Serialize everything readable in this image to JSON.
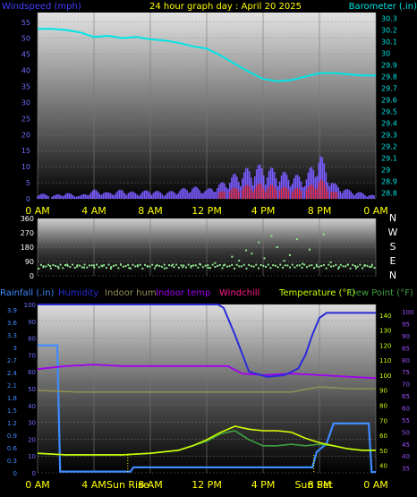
{
  "panel1": {
    "title": "24 hour graph day : April 20 2025",
    "left_label": "Windspeed (mph)",
    "right_label": "Barometer (.in)",
    "x_ticks": [
      "0 AM",
      "4 AM",
      "8 AM",
      "12 PM",
      "4 PM",
      "8 PM",
      "0 AM"
    ],
    "left_ticks": [
      "0",
      "5",
      "10",
      "15",
      "20",
      "25",
      "30",
      "35",
      "40",
      "45",
      "50",
      "55"
    ],
    "right_ticks": [
      "28.8",
      "28.9",
      "29",
      "29.1",
      "29.2",
      "29.3",
      "29.4",
      "29.5",
      "29.6",
      "29.7",
      "29.8",
      "29.9",
      "30",
      "30.1",
      "30.2",
      "30.3"
    ]
  },
  "panel2": {
    "left_ticks": [
      "0",
      "90",
      "180",
      "270",
      "360"
    ],
    "compass": [
      "N",
      "W",
      "S",
      "E",
      "N"
    ]
  },
  "panel3": {
    "legend": [
      {
        "label": "Rainfall (.in)",
        "color": "#3c8cff"
      },
      {
        "label": "Humidity",
        "color": "#2a2ad8"
      },
      {
        "label": "Indoor hum",
        "color": "#8f8f56"
      },
      {
        "label": "Indoor temp",
        "color": "#a000f0"
      },
      {
        "label": "Windchill",
        "color": "#ff1a8c"
      },
      {
        "label": "Temperature (°F)",
        "color": "#c8ff00"
      },
      {
        "label": "Dew Point (°F)",
        "color": "#3f9f3f"
      }
    ],
    "x_ticks": [
      "0 AM",
      "4 AM",
      "8 AM",
      "12 PM",
      "4 PM",
      "8 PM",
      "0 AM"
    ],
    "sun_labels": [
      "Sun Rise",
      "Sun Set"
    ],
    "rain_ticks": [
      "0",
      "0.3",
      "0.6",
      "0.9",
      "1.2",
      "1.5",
      "1.8",
      "2.1",
      "2.4",
      "2.7",
      "3",
      "3.3",
      "3.6",
      "3.9"
    ],
    "hum_ticks": [
      "0",
      "10",
      "20",
      "30",
      "40",
      "50",
      "60",
      "70",
      "80",
      "90",
      "100"
    ],
    "temp_ticks": [
      "40",
      "50",
      "60",
      "70",
      "80",
      "90",
      "100",
      "110",
      "120",
      "130",
      "140"
    ],
    "dew_ticks": [
      "35",
      "40",
      "45",
      "50",
      "55",
      "60",
      "65",
      "70",
      "75",
      "80",
      "85",
      "90",
      "95",
      "100"
    ]
  },
  "chart_data": [
    {
      "type": "line",
      "title": "24 hour graph day : April 20 2025",
      "x_unit": "hour",
      "series": [
        {
          "name": "Windspeed (mph)",
          "color": "#7a5cff",
          "x": [
            0,
            1,
            2,
            3,
            4,
            5,
            6,
            7,
            8,
            9,
            10,
            11,
            12,
            13,
            14,
            15,
            16,
            17,
            18,
            19,
            20,
            21,
            22,
            23,
            24
          ],
          "values": [
            2,
            1,
            2,
            1,
            3,
            2,
            3,
            2,
            3,
            2,
            3,
            4,
            3,
            5,
            8,
            10,
            11,
            9,
            8,
            7,
            15,
            5,
            3,
            2,
            1
          ]
        },
        {
          "name": "Barometer (.in)",
          "color": "#00e5e5",
          "x": [
            0,
            1,
            2,
            3,
            4,
            5,
            6,
            7,
            8,
            9,
            10,
            11,
            12,
            13,
            14,
            15,
            16,
            17,
            18,
            19,
            20,
            21,
            22,
            23,
            24
          ],
          "values": [
            30.21,
            30.21,
            30.2,
            30.18,
            30.14,
            30.15,
            30.13,
            30.14,
            30.12,
            30.11,
            30.09,
            30.06,
            30.04,
            29.98,
            29.91,
            29.84,
            29.78,
            29.76,
            29.77,
            29.8,
            29.83,
            29.83,
            29.82,
            29.81,
            29.81
          ]
        }
      ],
      "ylim_left": [
        0,
        58
      ],
      "ylim_right": [
        28.75,
        30.35
      ]
    },
    {
      "type": "scatter",
      "series": [
        {
          "name": "Wind direction",
          "color": "#90e890",
          "x": [
            0.4,
            0.9,
            1.5,
            2.1,
            2.8,
            3.3,
            4.0,
            4.6,
            5.2,
            5.9,
            6.5,
            7.1,
            7.8,
            8.4,
            9.0,
            9.6,
            10.3,
            10.9,
            11.5,
            12.1,
            12.6,
            13.2,
            13.8,
            14.3,
            14.8,
            15.2,
            15.7,
            16.1,
            16.6,
            17.0,
            17.5,
            17.9,
            18.4,
            18.8,
            19.3,
            19.8,
            20.3,
            20.8,
            21.4,
            22.0,
            22.6,
            23.2,
            23.7
          ],
          "values": [
            55,
            62,
            48,
            70,
            58,
            52,
            65,
            60,
            45,
            72,
            50,
            66,
            58,
            61,
            47,
            70,
            55,
            62,
            74,
            51,
            80,
            65,
            120,
            95,
            160,
            140,
            210,
            110,
            250,
            180,
            95,
            130,
            230,
            75,
            165,
            60,
            260,
            85,
            55,
            70,
            48,
            62,
            58
          ]
        }
      ],
      "ylim": [
        0,
        360
      ]
    },
    {
      "type": "line",
      "x_unit": "hour",
      "series": [
        {
          "name": "Rainfall (.in)",
          "color": "#3c8cff",
          "x": [
            0,
            1.4,
            1.6,
            6.6,
            6.8,
            19.5,
            19.8,
            20.5,
            21.0,
            23.5,
            23.7,
            24
          ],
          "values": [
            3.05,
            3.05,
            0.03,
            0.03,
            0.13,
            0.13,
            0.5,
            0.7,
            1.18,
            1.18,
            0.02,
            0.02
          ]
        },
        {
          "name": "Humidity",
          "color": "#2a2ad8",
          "x": [
            0,
            12.8,
            13.2,
            14.0,
            15.0,
            16.3,
            17.5,
            18.5,
            19.0,
            19.5,
            20.0,
            20.5,
            24
          ],
          "values": [
            100,
            100,
            98,
            82,
            60,
            57,
            58,
            62,
            70,
            82,
            92,
            95,
            95
          ]
        },
        {
          "name": "Indoor hum",
          "color": "#8f8f56",
          "x": [
            0,
            3,
            6,
            9,
            12,
            14,
            16,
            18,
            20,
            22,
            24
          ],
          "values": [
            49,
            48,
            48,
            48,
            48,
            48,
            48,
            48,
            51,
            50,
            50
          ]
        },
        {
          "name": "Indoor temp",
          "color": "#a000f0",
          "x": [
            0,
            2,
            4,
            6,
            8,
            10,
            12,
            13.5,
            14.5,
            16,
            18,
            20,
            22,
            24
          ],
          "values": [
            104,
            106,
            107,
            106,
            106,
            106,
            106,
            106,
            101,
            100,
            101,
            100,
            99,
            98
          ]
        },
        {
          "name": "Windchill",
          "color": "#ff1a8c",
          "x": [
            0,
            2,
            4,
            6,
            8,
            10,
            11,
            12,
            13,
            14,
            15,
            16,
            17,
            18,
            19,
            20,
            21,
            22,
            23,
            24
          ],
          "values": [
            48,
            47,
            47,
            47,
            48,
            50,
            53,
            57,
            62,
            66,
            64,
            63,
            63,
            62,
            58,
            55,
            53,
            51,
            50,
            50
          ]
        },
        {
          "name": "Temperature (°F)",
          "color": "#c8ff00",
          "x": [
            0,
            2,
            4,
            6,
            8,
            10,
            11,
            12,
            13,
            14,
            15,
            16,
            17,
            18,
            19,
            20,
            21,
            22,
            23,
            24
          ],
          "values": [
            48,
            47,
            47,
            47,
            48,
            50,
            53,
            57,
            62,
            66,
            64,
            63,
            63,
            62,
            58,
            55,
            53,
            51,
            50,
            50
          ]
        },
        {
          "name": "Dew Point (°F)",
          "color": "#3f9f3f",
          "x": [
            0,
            2,
            4,
            6,
            8,
            10,
            11,
            12,
            13,
            14,
            15,
            16,
            17,
            18,
            19,
            20,
            21,
            22,
            23,
            24
          ],
          "values": [
            48,
            47,
            47,
            47,
            48,
            50,
            53,
            56,
            61,
            63,
            57,
            53,
            53,
            54,
            53,
            54,
            53,
            51,
            50,
            50
          ]
        }
      ],
      "sun_events": {
        "Sun Rise": 6.4,
        "Sun Set": 19.6
      }
    }
  ]
}
